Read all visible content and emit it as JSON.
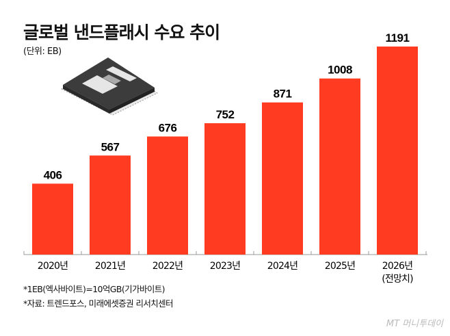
{
  "title": "글로벌 낸드플래시 수요 추이",
  "unit": "(단위: EB)",
  "notes": [
    "*1EB(엑사바이트)=10억GB(기가바이트)",
    "*자료: 트렌드포스, 미래에셋증권 리서치센터"
  ],
  "logo": "MT 머니투데이",
  "chart_data": {
    "type": "bar",
    "categories": [
      "2020년",
      "2021년",
      "2022년",
      "2023년",
      "2024년",
      "2025년",
      "2026년\n(전망치)"
    ],
    "values": [
      406,
      567,
      676,
      752,
      871,
      1008,
      1191
    ],
    "title": "글로벌 낸드플래시 수요 추이",
    "ylabel": "(단위: EB)",
    "bar_color": "#ff3b22",
    "grid": false
  }
}
